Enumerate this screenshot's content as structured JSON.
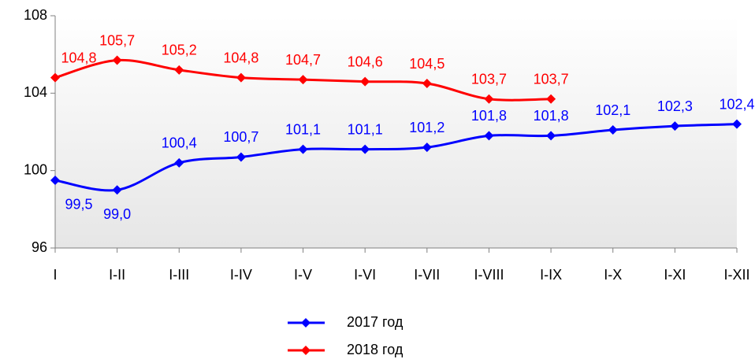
{
  "chart_data": {
    "type": "line",
    "categories": [
      "I",
      "I-II",
      "I-III",
      "I-IV",
      "I-V",
      "I-VI",
      "I-VII",
      "I-VIII",
      "I-IX",
      "I-X",
      "I-XI",
      "I-XII"
    ],
    "series": [
      {
        "name": "2017 год",
        "color": "#0000ff",
        "values": [
          99.5,
          99.0,
          100.4,
          100.7,
          101.1,
          101.1,
          101.2,
          101.8,
          101.8,
          102.1,
          102.3,
          102.4
        ],
        "value_labels": [
          "99,5",
          "99,0",
          "100,4",
          "100,7",
          "101,1",
          "101,1",
          "101,2",
          "101,8",
          "101,8",
          "102,1",
          "102,3",
          "102,4"
        ]
      },
      {
        "name": "2018 год",
        "color": "#ff0000",
        "values": [
          104.8,
          105.7,
          105.2,
          104.8,
          104.7,
          104.6,
          104.5,
          103.7,
          103.7,
          null,
          null,
          null
        ],
        "value_labels": [
          "104,8",
          "105,7",
          "105,2",
          "104,8",
          "104,7",
          "104,6",
          "104,5",
          "103,7",
          "103,7",
          null,
          null,
          null
        ]
      }
    ],
    "ylim": [
      96,
      108
    ],
    "yticks": [
      96,
      100,
      104,
      108
    ],
    "grid": false
  }
}
